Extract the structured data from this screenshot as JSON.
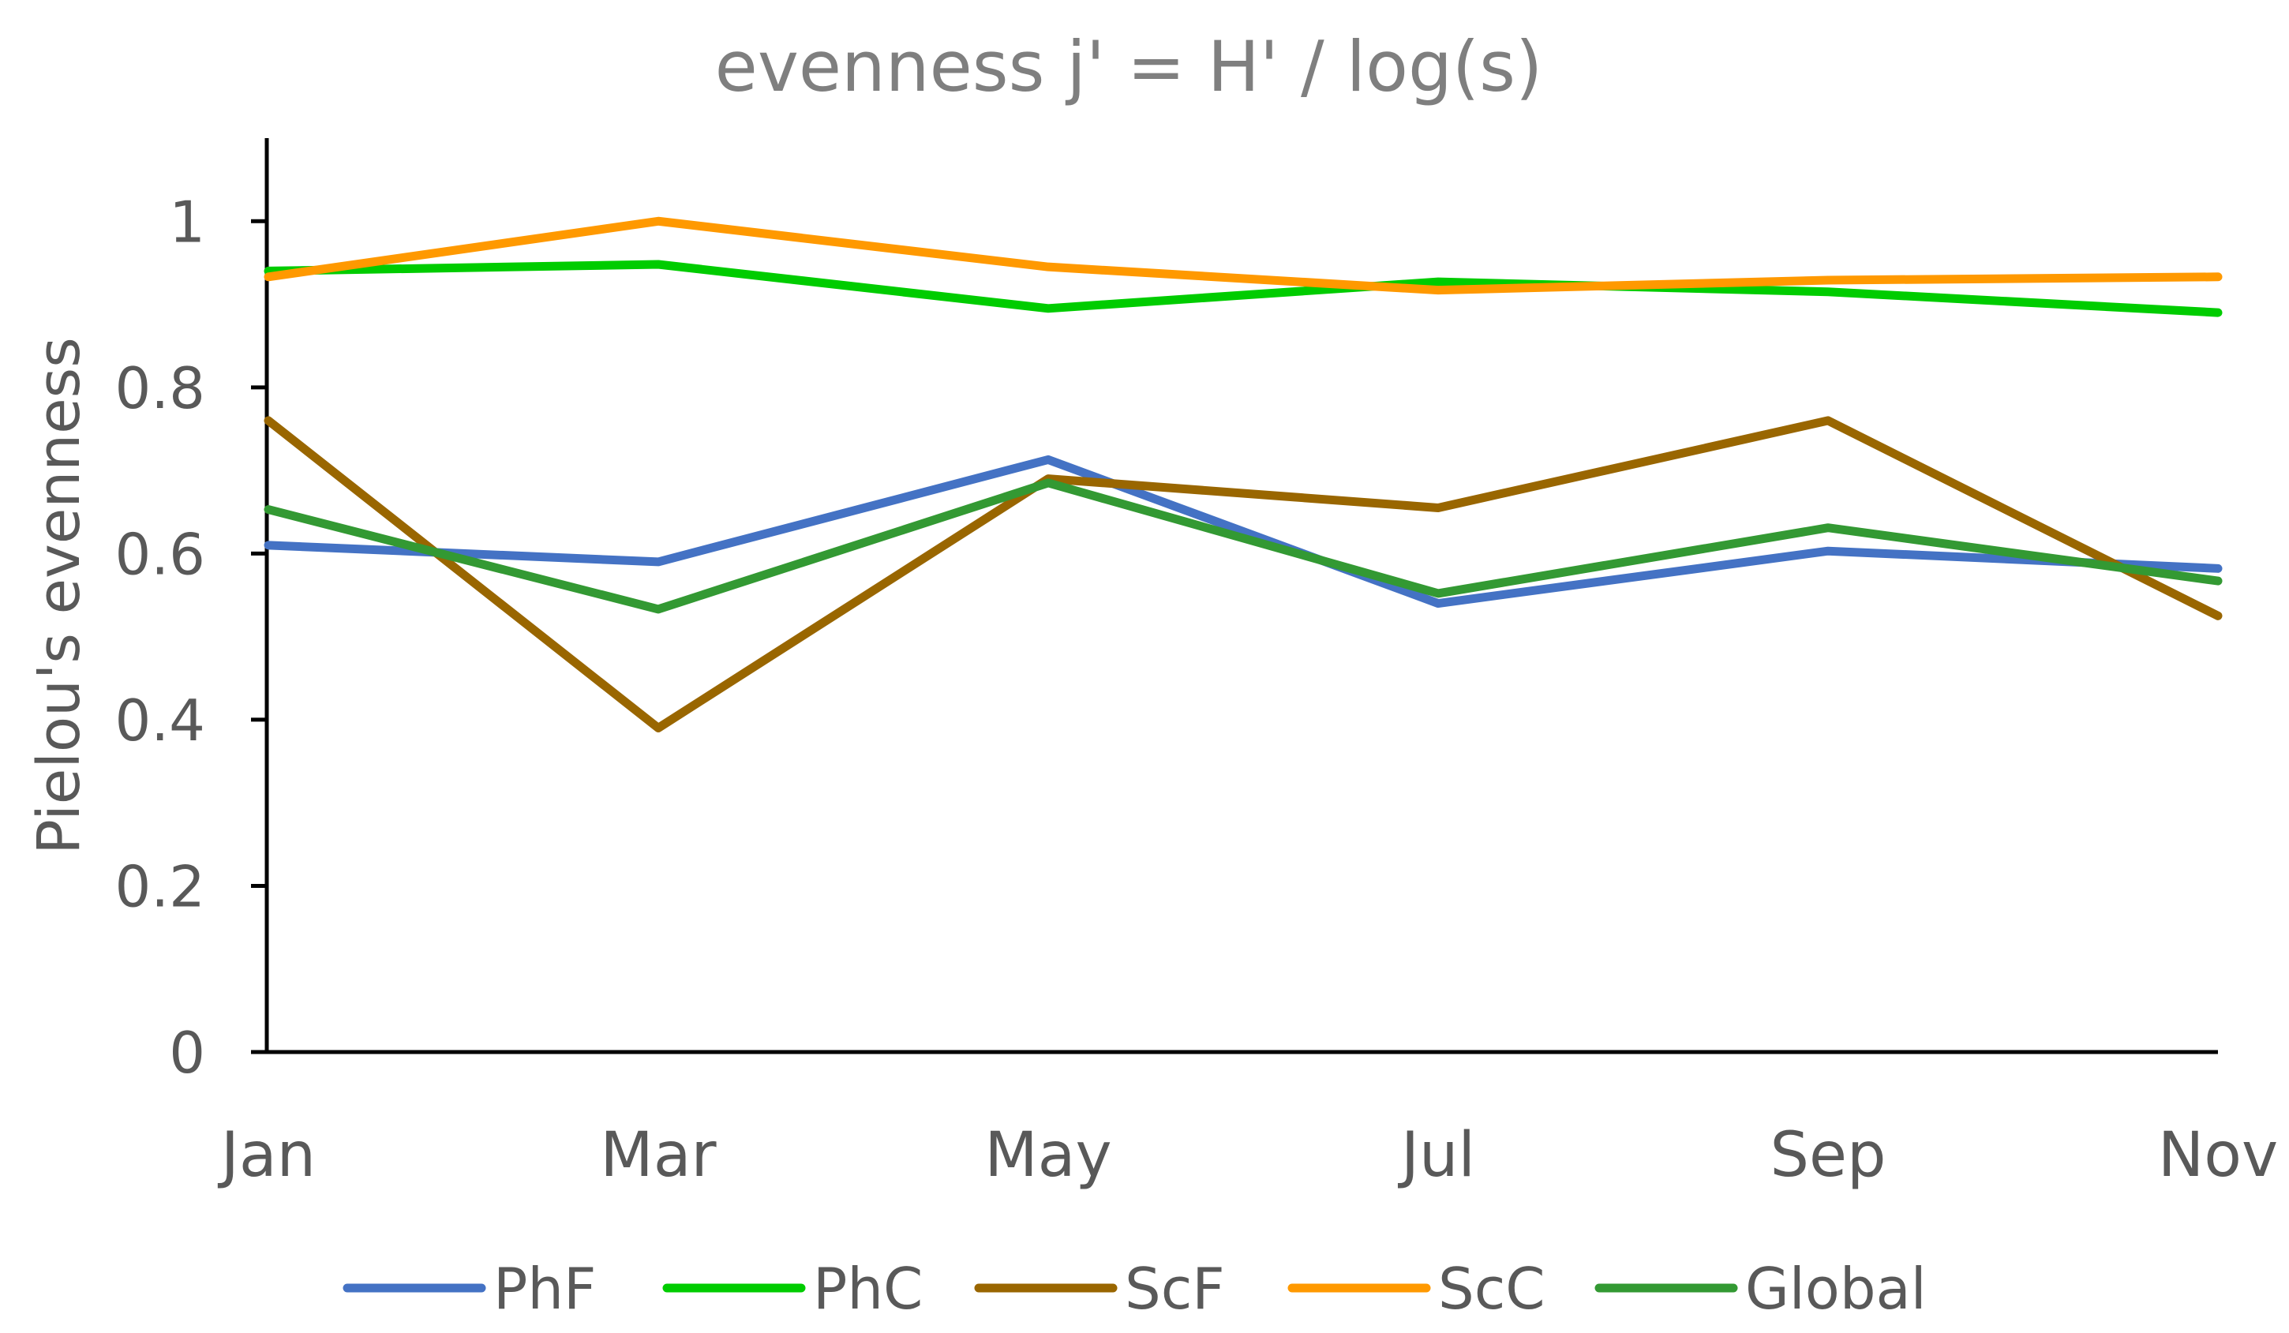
{
  "chart_data": {
    "type": "line",
    "title": "evenness j' = H' / log(s)",
    "xlabel": "",
    "ylabel": "Pielou's evenness",
    "categories": [
      "Jan",
      "Mar",
      "May",
      "Jul",
      "Sep",
      "Nov"
    ],
    "ylim": [
      0,
      1.1
    ],
    "yticks": [
      0,
      0.2,
      0.4,
      0.6,
      0.8,
      1
    ],
    "ytick_labels": [
      "0",
      "0.2",
      "0.4",
      "0.6",
      "0.8",
      "1"
    ],
    "grid": false,
    "legend_position": "bottom",
    "series": [
      {
        "name": "PhF",
        "color": "#4472C4",
        "values": [
          0.61,
          0.59,
          0.713,
          0.54,
          0.603,
          0.582
        ]
      },
      {
        "name": "PhC",
        "color": "#00CC00",
        "values": [
          0.94,
          0.948,
          0.895,
          0.927,
          0.915,
          0.89
        ]
      },
      {
        "name": "ScF",
        "color": "#996600",
        "values": [
          0.76,
          0.39,
          0.69,
          0.655,
          0.76,
          0.525
        ]
      },
      {
        "name": "ScC",
        "color": "#FF9900",
        "values": [
          0.933,
          1.0,
          0.945,
          0.917,
          0.929,
          0.933
        ]
      },
      {
        "name": "Global",
        "color": "#339933",
        "values": [
          0.653,
          0.533,
          0.685,
          0.552,
          0.631,
          0.567
        ]
      }
    ],
    "text_color": "#595959",
    "axis_color": "#000000"
  }
}
